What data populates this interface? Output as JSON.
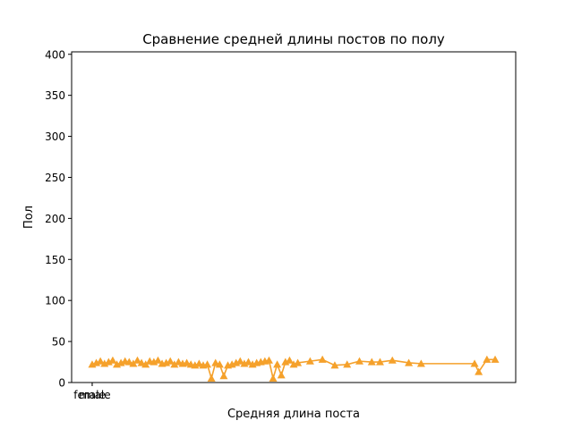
{
  "chart_data": {
    "type": "line",
    "title": "Сравнение средней длины постов по полу",
    "xlabel": "Средняя длина поста",
    "ylabel": "Пол",
    "x_tick_labels": [
      "female",
      "male"
    ],
    "y_ticks": [
      0,
      50,
      100,
      150,
      200,
      250,
      300,
      350,
      400
    ],
    "ylim": [
      0,
      403
    ],
    "xlim": [
      -0.5,
      10.3
    ],
    "grid": false,
    "legend": "none",
    "series": [
      {
        "color": "#f5a12b",
        "marker": "triangle-up",
        "x": [
          0.0,
          0.1,
          0.2,
          0.3,
          0.4,
          0.5,
          0.6,
          0.7,
          0.8,
          0.9,
          1.0,
          1.1,
          1.2,
          1.3,
          1.4,
          1.5,
          1.6,
          1.7,
          1.8,
          1.9,
          2.0,
          2.1,
          2.2,
          2.3,
          2.4,
          2.5,
          2.6,
          2.7,
          2.8,
          2.9,
          3.0,
          3.1,
          3.2,
          3.3,
          3.4,
          3.5,
          3.6,
          3.7,
          3.8,
          3.9,
          4.0,
          4.1,
          4.2,
          4.3,
          4.4,
          4.5,
          4.6,
          4.7,
          4.8,
          4.9,
          5.0,
          5.3,
          5.6,
          5.9,
          6.2,
          6.5,
          6.8,
          7.0,
          7.3,
          7.7,
          8.0,
          9.3,
          9.4,
          9.6,
          9.8
        ],
        "y": [
          22,
          24,
          26,
          23,
          25,
          27,
          22,
          24,
          26,
          25,
          23,
          27,
          24,
          22,
          26,
          25,
          27,
          23,
          24,
          26,
          22,
          25,
          23,
          24,
          22,
          21,
          23,
          21,
          22,
          5,
          24,
          22,
          8,
          21,
          22,
          24,
          26,
          23,
          25,
          22,
          24,
          25,
          26,
          27,
          5,
          22,
          9,
          25,
          27,
          22,
          24,
          26,
          28,
          21,
          22,
          26,
          25,
          25,
          27,
          24,
          23,
          23,
          13,
          28,
          28
        ]
      }
    ]
  }
}
